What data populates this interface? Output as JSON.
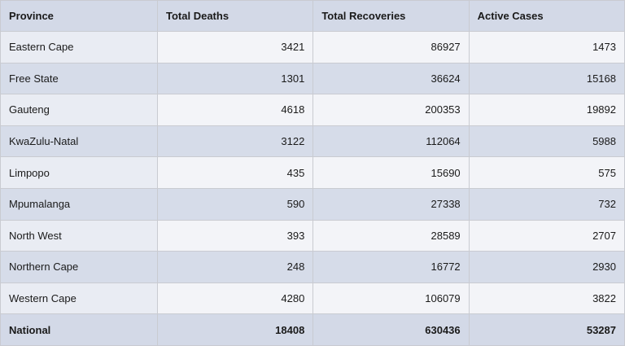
{
  "table": {
    "header": [
      "Province",
      "Total Deaths",
      "Total Recoveries",
      "Active Cases"
    ],
    "rows": [
      [
        "Eastern Cape",
        3421,
        86927,
        1473
      ],
      [
        "Free State",
        1301,
        36624,
        15168
      ],
      [
        "Gauteng",
        4618,
        200353,
        19892
      ],
      [
        "KwaZulu-Natal",
        3122,
        112064,
        5988
      ],
      [
        "Limpopo",
        435,
        15690,
        575
      ],
      [
        "Mpumalanga",
        590,
        27338,
        732
      ],
      [
        "North West",
        393,
        28589,
        2707
      ],
      [
        "Northern Cape",
        248,
        16772,
        2930
      ],
      [
        "Western Cape",
        4280,
        106079,
        3822
      ],
      [
        "National",
        18408,
        630436,
        53287
      ]
    ]
  }
}
